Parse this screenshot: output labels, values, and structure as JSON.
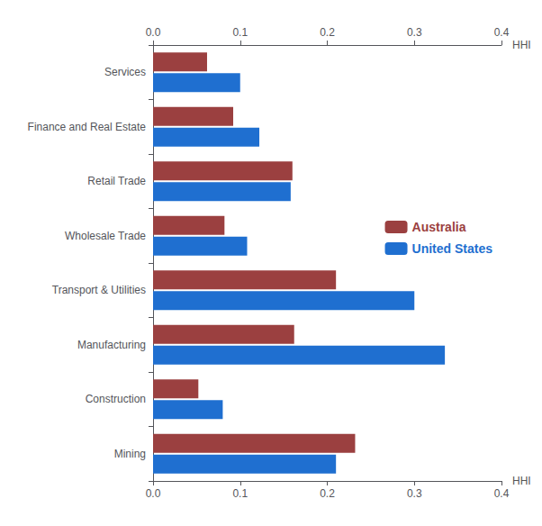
{
  "chart_data": {
    "type": "bar",
    "orientation": "horizontal",
    "categories": [
      "Services",
      "Finance and Real Estate",
      "Retail Trade",
      "Wholesale Trade",
      "Transport & Utilities",
      "Manufacturing",
      "Construction",
      "Mining"
    ],
    "series": [
      {
        "name": "Australia",
        "color": "#9B4040",
        "values": [
          0.062,
          0.092,
          0.16,
          0.082,
          0.21,
          0.162,
          0.052,
          0.232
        ]
      },
      {
        "name": "United States",
        "color": "#1F6FD0",
        "values": [
          0.1,
          0.122,
          0.158,
          0.108,
          0.3,
          0.335,
          0.08,
          0.21
        ]
      }
    ],
    "xlabel": "HHI",
    "xlim": [
      0.0,
      0.4
    ],
    "xticks": [
      {
        "value": 0.0,
        "label": "0.0"
      },
      0.1,
      0.2,
      0.3,
      0.4
    ],
    "grid": false,
    "legend": "right"
  }
}
